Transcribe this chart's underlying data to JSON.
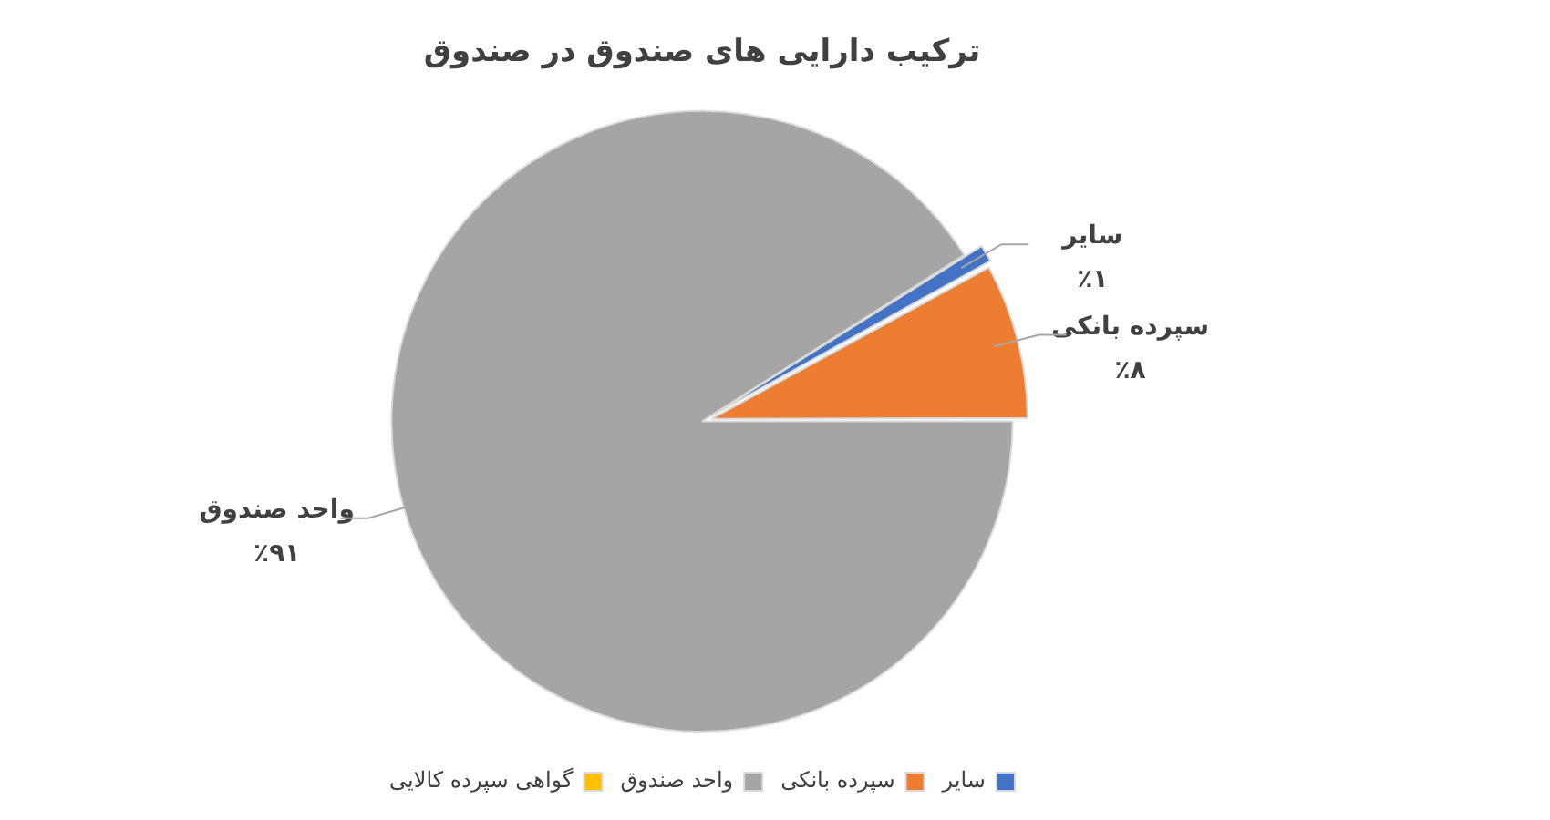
{
  "chart_data": {
    "type": "pie",
    "title": "ترکیب دارایی های صندوق در صندوق",
    "categories": [
      "سایر",
      "سپرده بانکی",
      "واحد صندوق",
      "گواهی سپرده کالایی"
    ],
    "values": [
      1,
      8,
      91,
      0
    ],
    "value_labels": [
      "٪۱",
      "٪۸",
      "٪۹۱",
      null
    ],
    "colors": [
      "#4472c4",
      "#ed7d31",
      "#a5a5a5",
      "#ffc000"
    ],
    "legend": "bottom"
  }
}
